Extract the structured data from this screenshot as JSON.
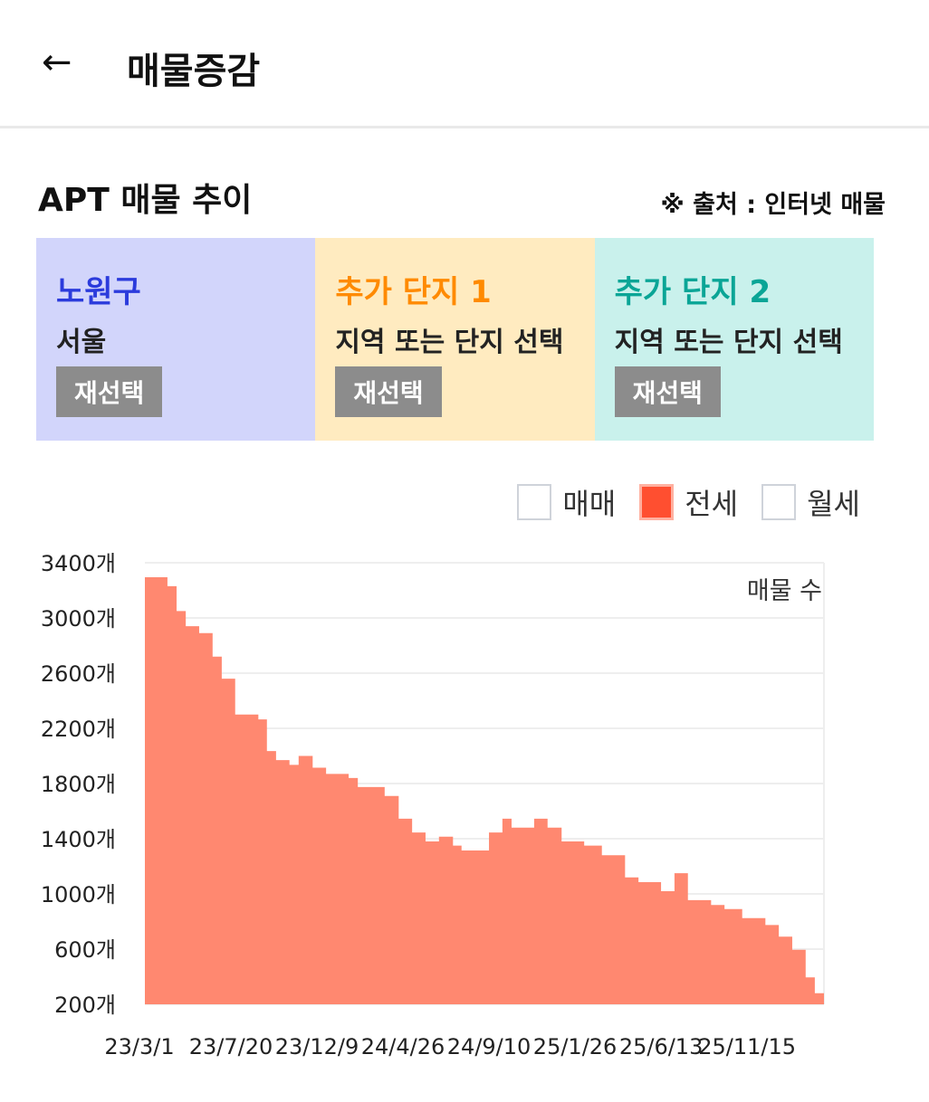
{
  "header": {
    "back_icon": "arrow-left-icon",
    "title": "매물증감"
  },
  "section": {
    "title": "APT 매물 추이",
    "source": "※ 출처 : 인터넷 매물"
  },
  "cards": [
    {
      "name": "노원구",
      "sub": "서울",
      "button": "재선택",
      "color": "#2b3bdc"
    },
    {
      "name": "추가 단지 1",
      "sub": "지역 또는 단지 선택",
      "button": "재선택",
      "color": "#ff8a00"
    },
    {
      "name": "추가 단지 2",
      "sub": "지역 또는 단지 선택",
      "button": "재선택",
      "color": "#0aa596"
    }
  ],
  "legend": [
    {
      "label": "매매",
      "checked": false
    },
    {
      "label": "전세",
      "checked": true
    },
    {
      "label": "월세",
      "checked": false
    }
  ],
  "chart_data": {
    "type": "area",
    "series_label": "매물 수",
    "color": "#ff8870",
    "ylim": [
      200,
      3400
    ],
    "yticks": [
      200,
      600,
      1000,
      1400,
      1800,
      2200,
      2600,
      3000,
      3400
    ],
    "ytick_labels": [
      "200개",
      "600개",
      "1000개",
      "1400개",
      "1800개",
      "2200개",
      "2600개",
      "3000개",
      "3400개"
    ],
    "xlim": [
      0,
      1113
    ],
    "xticks": [
      0,
      141,
      282,
      423,
      564,
      705,
      846,
      987
    ],
    "xtick_labels": [
      "23/3/1",
      "23/7/20",
      "23/12/9",
      "24/4/26",
      "24/9/10",
      "25/1/26",
      "25/6/13",
      "25/11/15"
    ],
    "x": [
      0,
      37,
      52,
      67,
      89,
      111,
      126,
      148,
      186,
      200,
      215,
      237,
      252,
      275,
      297,
      334,
      349,
      371,
      393,
      416,
      438,
      460,
      482,
      505,
      519,
      542,
      564,
      586,
      601,
      638,
      660,
      683,
      720,
      749,
      787,
      809,
      846,
      868,
      890,
      928,
      950,
      979,
      1017,
      1039,
      1061,
      1083,
      1098,
      1113
    ],
    "y": [
      3295,
      3230,
      3050,
      2940,
      2890,
      2720,
      2560,
      2300,
      2265,
      2035,
      1970,
      1935,
      2000,
      1915,
      1870,
      1840,
      1775,
      1775,
      1710,
      1545,
      1445,
      1380,
      1415,
      1350,
      1315,
      1315,
      1445,
      1545,
      1480,
      1545,
      1480,
      1380,
      1350,
      1280,
      1120,
      1085,
      1020,
      1150,
      955,
      920,
      890,
      825,
      775,
      690,
      595,
      395,
      280,
      235
    ]
  }
}
